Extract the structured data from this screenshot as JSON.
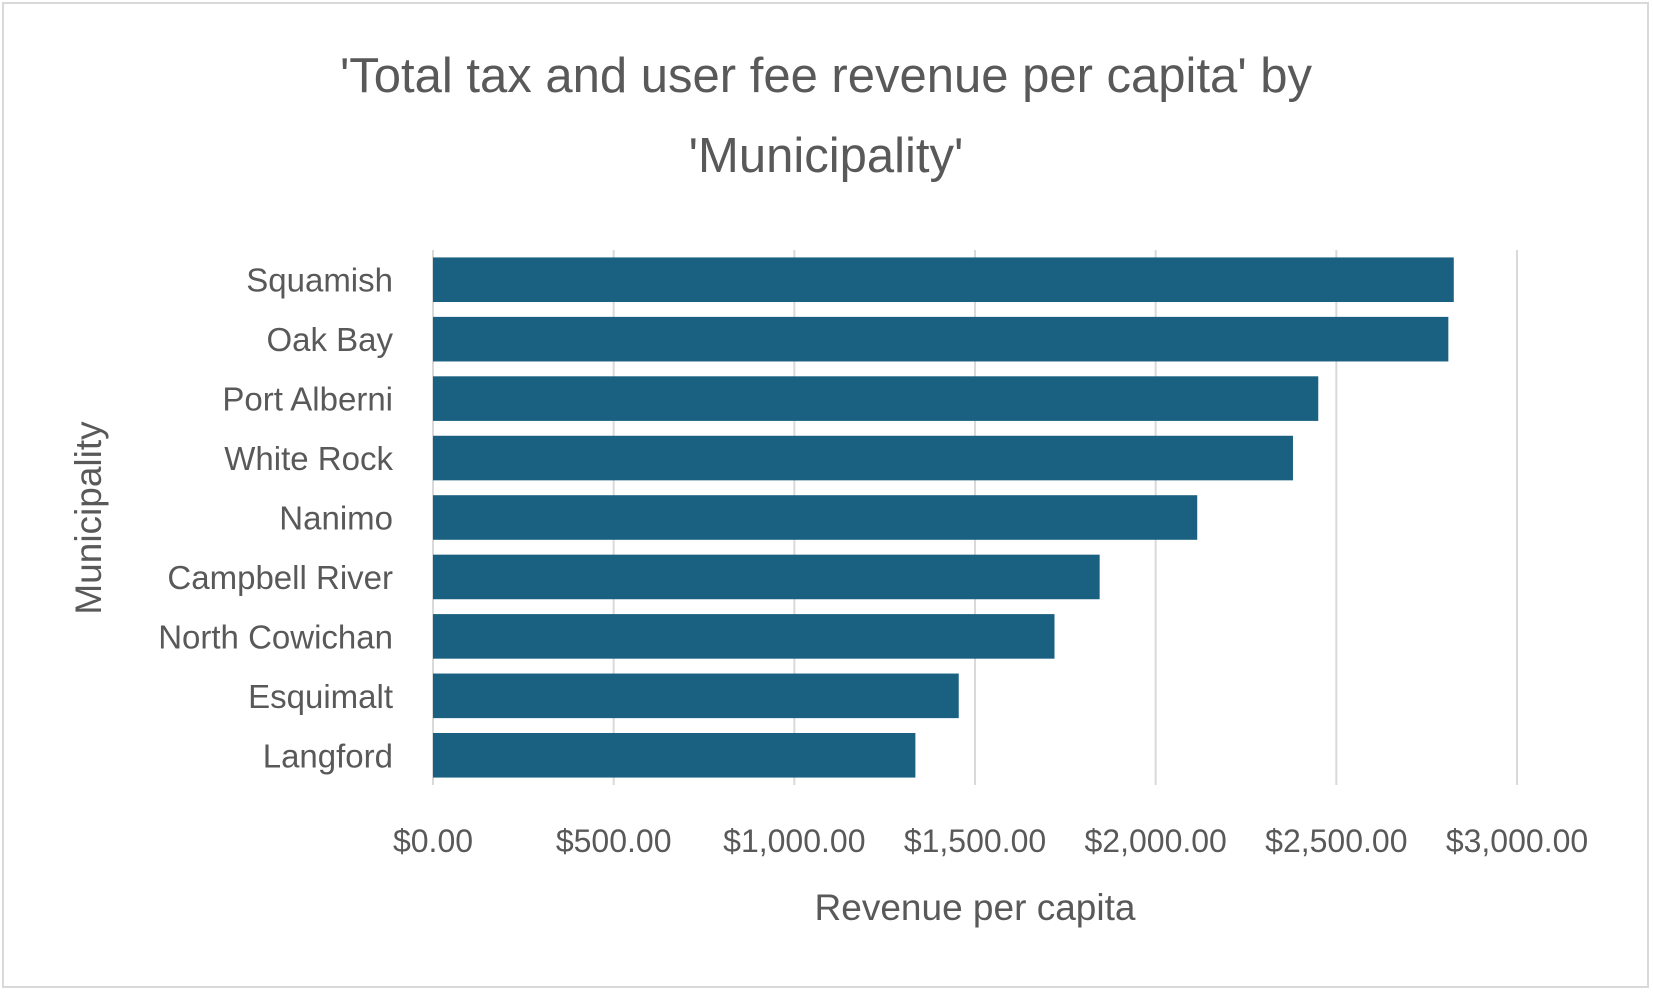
{
  "chart_data": {
    "type": "bar",
    "orientation": "horizontal",
    "title_line1": "'Total tax and user fee revenue per capita' by",
    "title_line2": "'Municipality'",
    "xlabel": "Revenue per capita",
    "ylabel": "Municipality",
    "categories": [
      "Squamish",
      "Oak Bay",
      "Port Alberni",
      "White Rock",
      "Nanimo",
      "Campbell River",
      "North Cowichan",
      "Esquimalt",
      "Langford"
    ],
    "values": [
      2825,
      2810,
      2450,
      2380,
      2115,
      1845,
      1720,
      1455,
      1335
    ],
    "xlim": [
      0,
      3000
    ],
    "xticks": [
      0,
      500,
      1000,
      1500,
      2000,
      2500,
      3000
    ],
    "xtick_labels": [
      "$0.00",
      "$500.00",
      "$1,000.00",
      "$1,500.00",
      "$2,000.00",
      "$2,500.00",
      "$3,000.00"
    ],
    "grid": true,
    "legend": "none",
    "bar_color": "#1a6080",
    "grid_color": "#d9d9d9",
    "text_color": "#595959"
  }
}
